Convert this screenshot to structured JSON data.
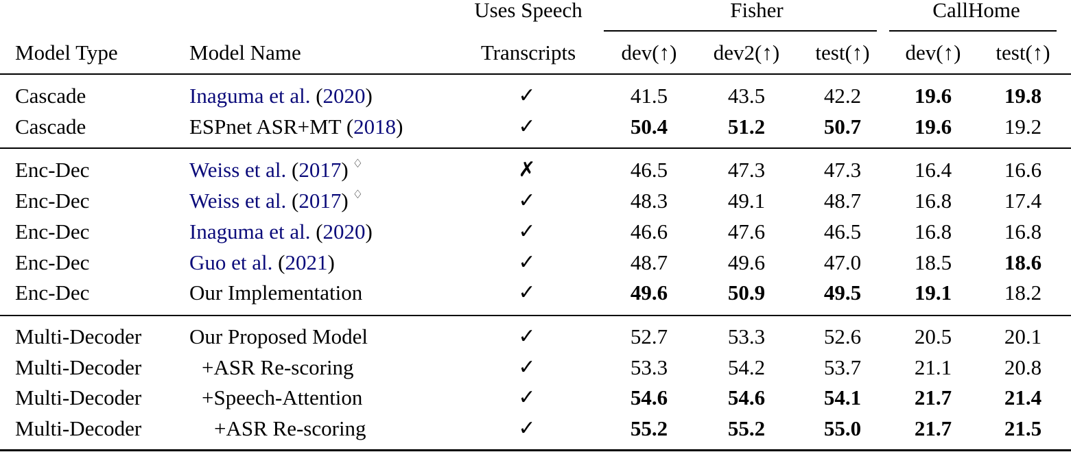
{
  "table": {
    "header": {
      "group_uses": "Uses Speech",
      "group_fisher": "Fisher",
      "group_callhome": "CallHome",
      "col_model_type": "Model Type",
      "col_model_name": "Model Name",
      "col_transcripts": "Transcripts",
      "col_fisher_dev": "dev(↑)",
      "col_fisher_dev2": "dev2(↑)",
      "col_fisher_test": "test(↑)",
      "col_callhome_dev": "dev(↑)",
      "col_callhome_test": "test(↑)"
    },
    "marks": {
      "check": "✓",
      "cross": "✗",
      "diamond": "♢"
    },
    "citation_color": "#0b0b7a",
    "rows": [
      {
        "type": "Cascade",
        "name_cite": "Inaguma et al.",
        "name_plain": "",
        "year": "2020",
        "uses": "✓",
        "fisher_dev": "41.5",
        "fisher_dev2": "43.5",
        "fisher_test": "42.2",
        "callhome_dev": "19.6",
        "callhome_test": "19.8"
      },
      {
        "type": "Cascade",
        "name_cite": "",
        "name_plain": "ESPnet ASR+MT",
        "year": "2018",
        "uses": "✓",
        "fisher_dev": "50.4",
        "fisher_dev2": "51.2",
        "fisher_test": "50.7",
        "callhome_dev": "19.6",
        "callhome_test": "19.2"
      },
      {
        "type": "Enc-Dec",
        "name_cite": "Weiss et al.",
        "name_plain": "",
        "year": "2017",
        "uses": "✗",
        "fisher_dev": "46.5",
        "fisher_dev2": "47.3",
        "fisher_test": "47.3",
        "callhome_dev": "16.4",
        "callhome_test": "16.6"
      },
      {
        "type": "Enc-Dec",
        "name_cite": "Weiss et al.",
        "name_plain": "",
        "year": "2017",
        "uses": "✓",
        "fisher_dev": "48.3",
        "fisher_dev2": "49.1",
        "fisher_test": "48.7",
        "callhome_dev": "16.8",
        "callhome_test": "17.4"
      },
      {
        "type": "Enc-Dec",
        "name_cite": "Inaguma et al.",
        "name_plain": "",
        "year": "2020",
        "uses": "✓",
        "fisher_dev": "46.6",
        "fisher_dev2": "47.6",
        "fisher_test": "46.5",
        "callhome_dev": "16.8",
        "callhome_test": "16.8"
      },
      {
        "type": "Enc-Dec",
        "name_cite": "Guo et al.",
        "name_plain": "",
        "year": "2021",
        "uses": "✓",
        "fisher_dev": "48.7",
        "fisher_dev2": "49.6",
        "fisher_test": "47.0",
        "callhome_dev": "18.5",
        "callhome_test": "18.6"
      },
      {
        "type": "Enc-Dec",
        "name_cite": "",
        "name_plain": "Our Implementation",
        "year": "",
        "uses": "✓",
        "fisher_dev": "49.6",
        "fisher_dev2": "50.9",
        "fisher_test": "49.5",
        "callhome_dev": "19.1",
        "callhome_test": "18.2"
      },
      {
        "type": "Multi-Decoder",
        "name_cite": "",
        "name_plain": "Our Proposed Model",
        "year": "",
        "uses": "✓",
        "fisher_dev": "52.7",
        "fisher_dev2": "53.3",
        "fisher_test": "52.6",
        "callhome_dev": "20.5",
        "callhome_test": "20.1"
      },
      {
        "type": "Multi-Decoder",
        "name_cite": "",
        "name_plain": "+ASR Re-scoring",
        "year": "",
        "uses": "✓",
        "fisher_dev": "53.3",
        "fisher_dev2": "54.2",
        "fisher_test": "53.7",
        "callhome_dev": "21.1",
        "callhome_test": "20.8"
      },
      {
        "type": "Multi-Decoder",
        "name_cite": "",
        "name_plain": "+Speech-Attention",
        "year": "",
        "uses": "✓",
        "fisher_dev": "54.6",
        "fisher_dev2": "54.6",
        "fisher_test": "54.1",
        "callhome_dev": "21.7",
        "callhome_test": "21.4"
      },
      {
        "type": "Multi-Decoder",
        "name_cite": "",
        "name_plain": "+ASR Re-scoring",
        "year": "",
        "uses": "✓",
        "fisher_dev": "55.2",
        "fisher_dev2": "55.2",
        "fisher_test": "55.0",
        "callhome_dev": "21.7",
        "callhome_test": "21.5"
      }
    ]
  }
}
